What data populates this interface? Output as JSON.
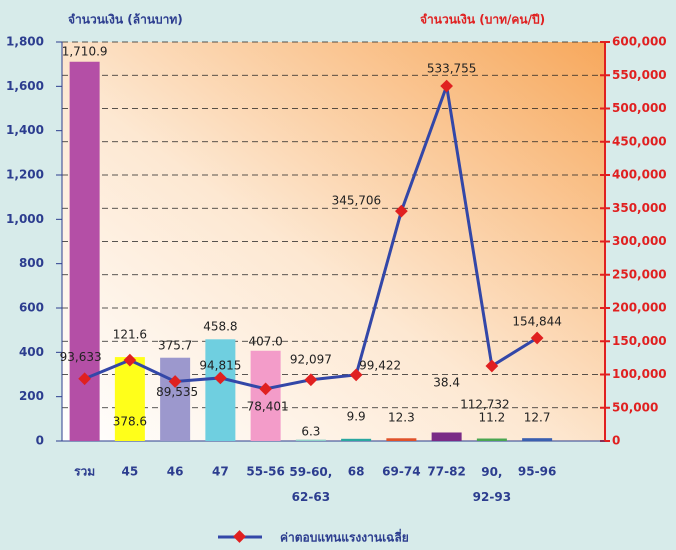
{
  "chart_data": {
    "type": "bar-line",
    "y_label": "จำนวนเงิน (ล้านบาท)",
    "y2_label": "จำนวนเงิน (บาท/คน/ปี)",
    "categories": [
      "รวม",
      "45",
      "46",
      "47",
      "55-56",
      "59-60,\n62-63",
      "68",
      "69-74",
      "77-82",
      "90,\n92-93",
      "95-96"
    ],
    "annotations": [
      {
        "text": "121.6"
      }
    ],
    "series": [
      {
        "type": "bar",
        "axis": "y",
        "colors": [
          "#b44fa6",
          "#ffff1a",
          "#9c98cd",
          "#6fcfe0",
          "#f39cc9",
          "#8fd0c8",
          "#2aa7a0",
          "#e0522a",
          "#7a2b86",
          "#4aa651",
          "#3a5fb0"
        ],
        "values": [
          1710.9,
          378.6,
          375.7,
          458.8,
          407,
          6.3,
          9.9,
          12.3,
          38.4,
          11.2,
          12.7
        ],
        "value_labels": [
          "1,710.9",
          "378.6",
          "375.7",
          "458.8",
          "407.0",
          "6.3",
          "9.9",
          "12.3",
          "38.4",
          "11.2",
          "12.7"
        ]
      },
      {
        "type": "line",
        "axis": "y2",
        "name": "ค่าตอบแทนแรงงานเฉลี่ย",
        "color": "#3347a8",
        "marker_color": "#e02020",
        "values": [
          93633,
          121600,
          89535,
          94815,
          78401,
          92097,
          99422,
          345706,
          533755,
          112732,
          154844
        ],
        "value_labels": [
          "93,633",
          null,
          "89,535",
          "94,815",
          "78,401",
          "92,097",
          "99,422",
          "345,706",
          "533,755",
          "112,732",
          "154,844"
        ]
      }
    ],
    "ylim": [
      0,
      1800
    ],
    "yticks": [
      0,
      200,
      400,
      600,
      800,
      {
        "value": 1000,
        "label": "1,000"
      },
      {
        "value": 1200,
        "label": "1,200"
      },
      {
        "value": 1400,
        "label": "1,400"
      },
      {
        "value": 1600,
        "label": "1,600"
      },
      {
        "value": 1800,
        "label": "1,800"
      }
    ],
    "y2lim": [
      0,
      600000
    ],
    "y2ticks": [
      0,
      {
        "value": 50000,
        "label": "50,000"
      },
      {
        "value": 100000,
        "label": "100,000"
      },
      {
        "value": 150000,
        "label": "150,000"
      },
      {
        "value": 200000,
        "label": "200,000"
      },
      {
        "value": 250000,
        "label": "250,000"
      },
      {
        "value": 300000,
        "label": "300,000"
      },
      {
        "value": 350000,
        "label": "350,000"
      },
      {
        "value": 400000,
        "label": "400,000"
      },
      {
        "value": 450000,
        "label": "450,000"
      },
      {
        "value": 500000,
        "label": "500,000"
      },
      {
        "value": 550000,
        "label": "550,000"
      },
      {
        "value": 600000,
        "label": "600,000"
      }
    ],
    "grid": true,
    "legend": "bottom"
  }
}
